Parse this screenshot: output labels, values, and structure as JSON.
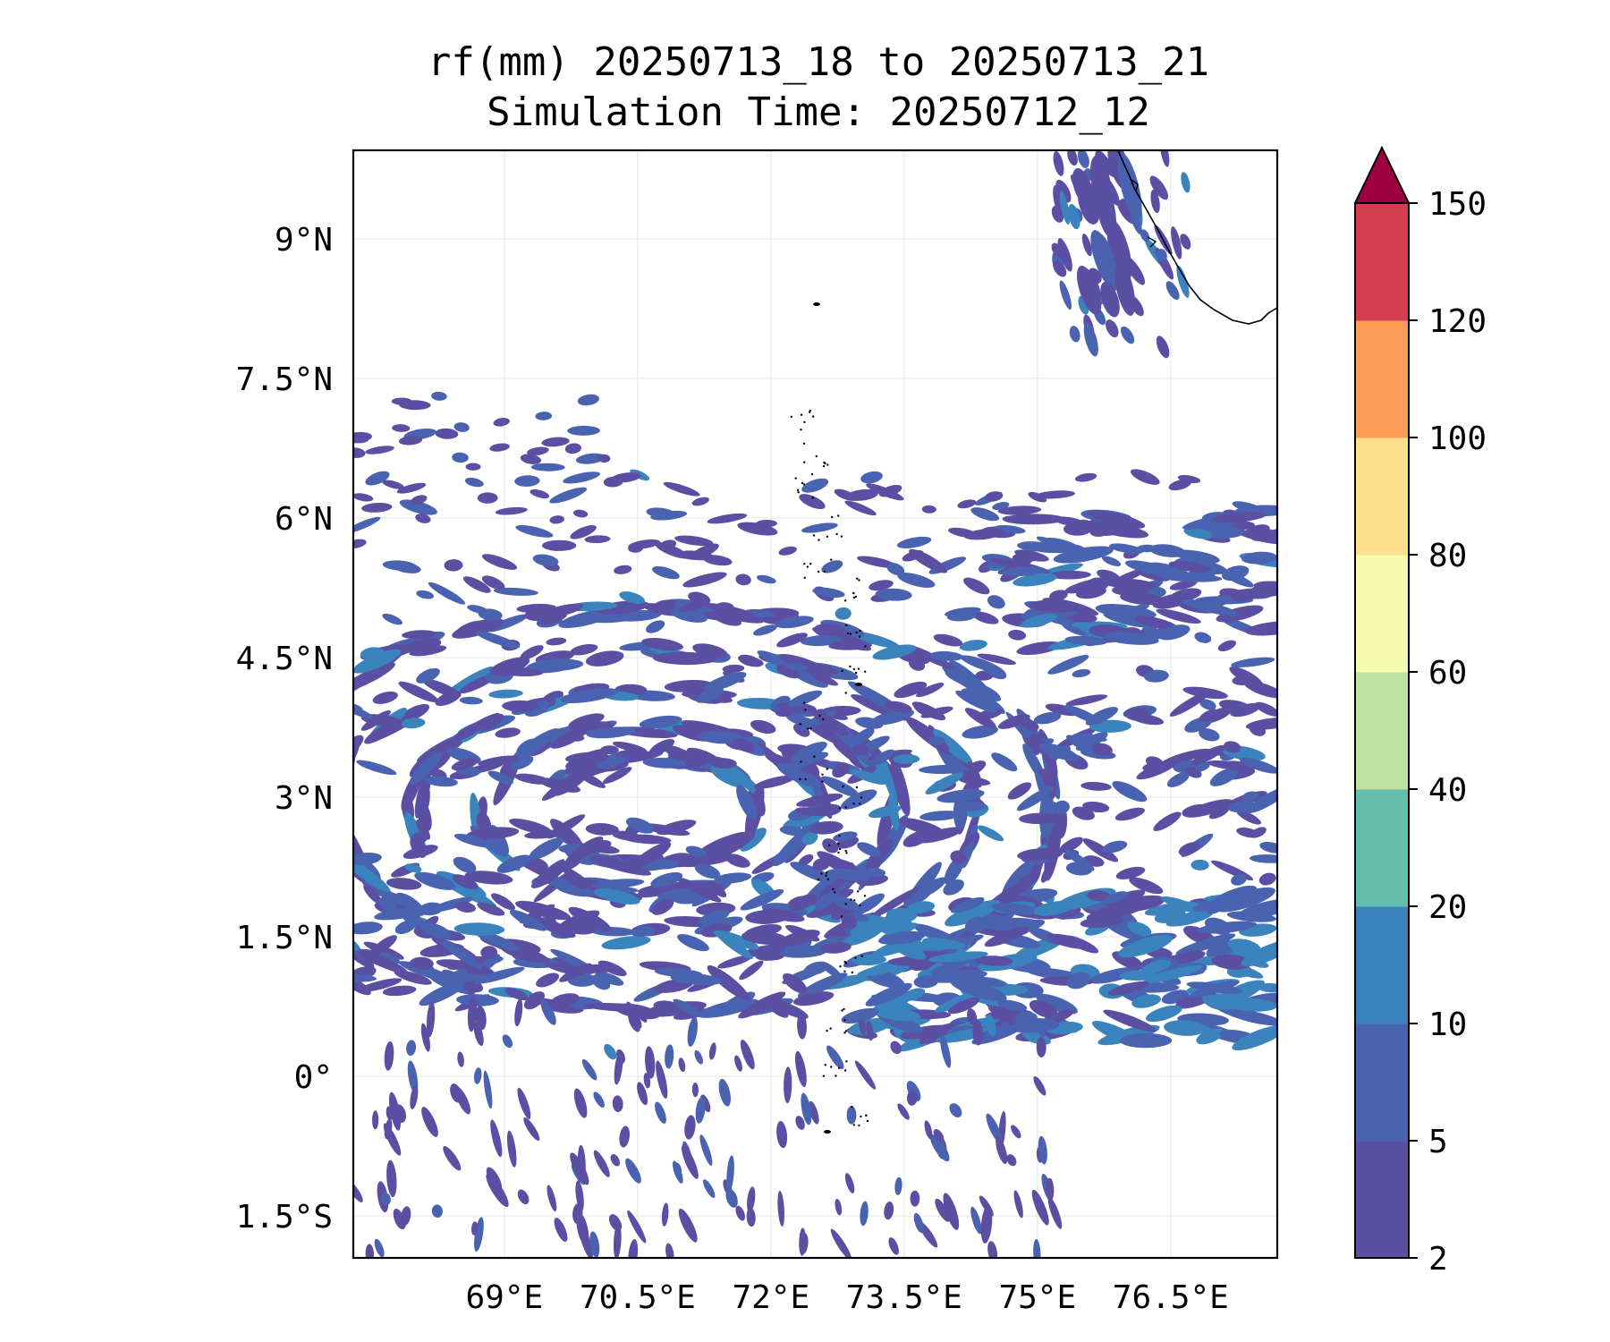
{
  "title": {
    "line1": "rf(mm) 20250713_18 to 20250713_21",
    "line2": "Simulation Time: 20250712_12"
  },
  "map": {
    "lon_range": [
      67.3,
      77.7
    ],
    "lat_range": [
      -1.95,
      9.95
    ],
    "lon_ticks": [
      {
        "value": 69.0,
        "label": "69°E"
      },
      {
        "value": 70.5,
        "label": "70.5°E"
      },
      {
        "value": 72.0,
        "label": "72°E"
      },
      {
        "value": 73.5,
        "label": "73.5°E"
      },
      {
        "value": 75.0,
        "label": "75°E"
      },
      {
        "value": 76.5,
        "label": "76.5°E"
      }
    ],
    "lat_ticks": [
      {
        "value": 9.0,
        "label": "9°N"
      },
      {
        "value": 7.5,
        "label": "7.5°N"
      },
      {
        "value": 6.0,
        "label": "6°N"
      },
      {
        "value": 4.5,
        "label": "4.5°N"
      },
      {
        "value": 3.0,
        "label": "3°N"
      },
      {
        "value": 1.5,
        "label": "1.5°N"
      },
      {
        "value": 0.0,
        "label": "0°"
      },
      {
        "value": -1.5,
        "label": "1.5°S"
      }
    ],
    "gridlines": true
  },
  "colorbar": {
    "levels": [
      "2",
      "5",
      "10",
      "20",
      "40",
      "60",
      "80",
      "100",
      "120",
      "150"
    ],
    "colors": [
      "#5a4fa2",
      "#4a63b0",
      "#3a83bd",
      "#63bfaa",
      "#bfe3a0",
      "#f4fbad",
      "#fde08b",
      "#fa9d59",
      "#d53e4f"
    ],
    "extend_color": "#9e0142",
    "extend": "max"
  },
  "rain_colors": {
    "light": "#5a4fa2",
    "moderate": "#4a63b0",
    "heavy": "#3a83bd"
  }
}
